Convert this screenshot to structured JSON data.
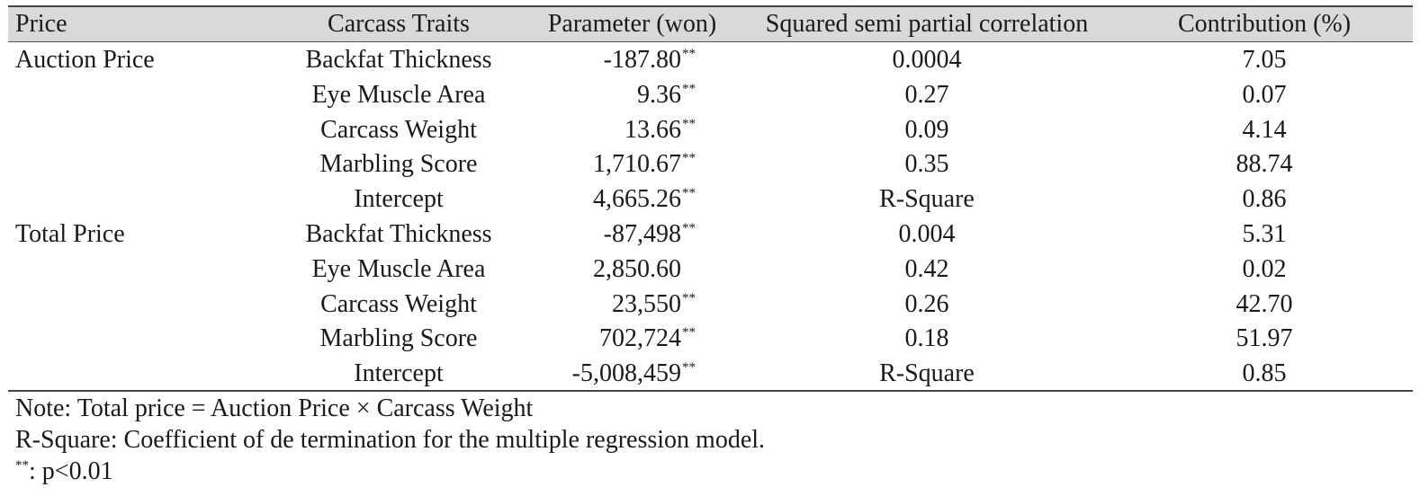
{
  "table": {
    "headers": {
      "price": "Price",
      "trait": "Carcass Traits",
      "param": "Parameter (won)",
      "squared": "Squared semi partial correlation",
      "contribution": "Contribution (%)"
    },
    "significance_marker": "**",
    "rows": [
      {
        "price": "Auction Price",
        "trait": "Backfat Thickness",
        "param": "-187.80",
        "sig": true,
        "squared": "0.0004",
        "contribution": "7.05"
      },
      {
        "price": "",
        "trait": "Eye Muscle Area",
        "param": "9.36",
        "sig": true,
        "squared": "0.27",
        "contribution": "0.07"
      },
      {
        "price": "",
        "trait": "Carcass Weight",
        "param": "13.66",
        "sig": true,
        "squared": "0.09",
        "contribution": "4.14"
      },
      {
        "price": "",
        "trait": "Marbling Score",
        "param": "1,710.67",
        "sig": true,
        "squared": "0.35",
        "contribution": "88.74"
      },
      {
        "price": "",
        "trait": "Intercept",
        "param": "4,665.26",
        "sig": true,
        "squared": "R-Square",
        "contribution": "0.86"
      },
      {
        "price": "Total Price",
        "trait": "Backfat Thickness",
        "param": "-87,498",
        "sig": true,
        "squared": "0.004",
        "contribution": "5.31"
      },
      {
        "price": "",
        "trait": "Eye Muscle Area",
        "param": "2,850.60",
        "sig": false,
        "squared": "0.42",
        "contribution": "0.02"
      },
      {
        "price": "",
        "trait": "Carcass Weight",
        "param": "23,550",
        "sig": true,
        "squared": "0.26",
        "contribution": "42.70"
      },
      {
        "price": "",
        "trait": "Marbling Score",
        "param": "702,724",
        "sig": true,
        "squared": "0.18",
        "contribution": "51.97"
      },
      {
        "price": "",
        "trait": "Intercept",
        "param": "-5,008,459",
        "sig": true,
        "squared": "R-Square",
        "contribution": "0.85"
      }
    ]
  },
  "notes": {
    "line1": "Note: Total price = Auction Price × Carcass Weight",
    "line2": "R-Square: Coefficient of de termination for the multiple regression model.",
    "sig_marker": "**",
    "sig_text": ": p<0.01"
  }
}
